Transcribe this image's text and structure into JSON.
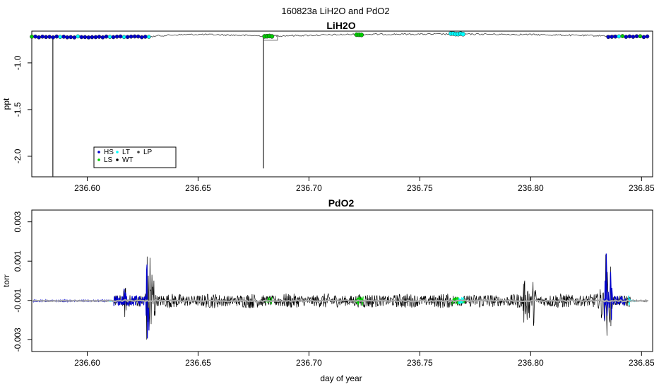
{
  "figure_title": "160823a   LiH2O and PdO2",
  "xlabel": "day of year",
  "colors": {
    "HS": "#0000cd",
    "LS": "#00cc00",
    "LT": "#00ffff",
    "WT": "#000000",
    "LP": "#444444",
    "mean_line": "#aaaaaa",
    "trace": "#000000"
  },
  "chart_data": [
    {
      "type": "line",
      "title": "LiH2O",
      "ylabel": "ppt",
      "xlim": [
        236.575,
        236.855
      ],
      "ylim": [
        -2.22,
        -0.66
      ],
      "x_ticks": [
        236.6,
        236.65,
        236.7,
        236.75,
        236.8,
        236.85
      ],
      "x_tick_labels": [
        "236.60",
        "236.65",
        "236.70",
        "236.75",
        "236.80",
        "236.85"
      ],
      "y_ticks": [
        -1.0,
        -1.5,
        -2.0
      ],
      "y_tick_labels": [
        "-1.0",
        "-1.5",
        "-2.0"
      ],
      "baseline": [
        [
          236.575,
          -0.722
        ],
        [
          236.6,
          -0.722
        ],
        [
          236.628,
          -0.722
        ],
        [
          236.632,
          -0.71
        ],
        [
          236.64,
          -0.7
        ],
        [
          236.65,
          -0.695
        ],
        [
          236.66,
          -0.7
        ],
        [
          236.67,
          -0.705
        ],
        [
          236.68,
          -0.712
        ],
        [
          236.7,
          -0.705
        ],
        [
          236.72,
          -0.695
        ],
        [
          236.74,
          -0.693
        ],
        [
          236.76,
          -0.692
        ],
        [
          236.78,
          -0.693
        ],
        [
          236.8,
          -0.697
        ],
        [
          236.82,
          -0.705
        ],
        [
          236.84,
          -0.712
        ],
        [
          236.853,
          -0.718
        ]
      ],
      "spikes": [
        {
          "x": 236.5845,
          "y": -2.22
        },
        {
          "x": 236.6795,
          "y": -2.13
        }
      ],
      "flag_segments": [
        {
          "from": 236.575,
          "to": 236.628,
          "flag": "HS",
          "y": -0.722
        },
        {
          "from": 236.835,
          "to": 236.853,
          "flag": "HS",
          "y": -0.718
        },
        {
          "from": 236.68,
          "to": 236.684,
          "flag": "LS",
          "y": -0.712
        },
        {
          "from": 236.7215,
          "to": 236.7245,
          "flag": "LS",
          "y": -0.696
        },
        {
          "from": 236.764,
          "to": 236.77,
          "flag": "LT",
          "y": -0.692
        }
      ],
      "legend": {
        "position": "bottom-left",
        "entries": [
          {
            "label": "HS",
            "flag": "HS"
          },
          {
            "label": "LS",
            "flag": "LS"
          },
          {
            "label": "LT",
            "flag": "LT"
          },
          {
            "label": "WT",
            "flag": "WT"
          },
          {
            "label": "LP",
            "flag": "LP"
          }
        ]
      }
    },
    {
      "type": "line",
      "title": "PdO2",
      "ylabel": "torr",
      "xlim": [
        236.575,
        236.855
      ],
      "ylim": [
        -0.0036,
        0.0036
      ],
      "x_ticks": [
        236.6,
        236.65,
        236.7,
        236.75,
        236.8,
        236.85
      ],
      "x_tick_labels": [
        "236.60",
        "236.65",
        "236.70",
        "236.75",
        "236.80",
        "236.85"
      ],
      "y_ticks": [
        0.003,
        0.001,
        -0.001,
        -0.003
      ],
      "y_tick_labels": [
        "0.003",
        "0.001",
        "-0.001",
        "-0.003"
      ],
      "level": -0.00102,
      "quiet_until": 236.612,
      "noisy_until": 236.845,
      "bursts": [
        {
          "x": 236.6285,
          "amp": 0.0047
        },
        {
          "x": 236.627,
          "amp": 0.0027
        },
        {
          "x": 236.63,
          "amp": 0.002
        },
        {
          "x": 236.617,
          "amp": 0.001
        },
        {
          "x": 236.799,
          "amp": 0.0021
        },
        {
          "x": 236.797,
          "amp": 0.0014
        },
        {
          "x": 236.8015,
          "amp": 0.0016
        },
        {
          "x": 236.834,
          "amp": 0.003
        },
        {
          "x": 236.836,
          "amp": 0.0018
        },
        {
          "x": 236.832,
          "amp": 0.0014
        }
      ],
      "flag_segments": [
        {
          "from": 236.575,
          "to": 236.612,
          "flag": "HS"
        },
        {
          "from": 236.612,
          "to": 236.628,
          "flag": "HS"
        },
        {
          "from": 236.833,
          "to": 236.843,
          "flag": "HS"
        },
        {
          "from": 236.6805,
          "to": 236.6835,
          "flag": "LS"
        },
        {
          "from": 236.7205,
          "to": 236.7245,
          "flag": "LS"
        },
        {
          "from": 236.7645,
          "to": 236.7705,
          "flag": "LS"
        },
        {
          "from": 236.6095,
          "to": 236.6115,
          "flag": "LT"
        },
        {
          "from": 236.7675,
          "to": 236.77,
          "flag": "LT"
        },
        {
          "from": 236.844,
          "to": 236.8475,
          "flag": "LT"
        }
      ]
    }
  ]
}
